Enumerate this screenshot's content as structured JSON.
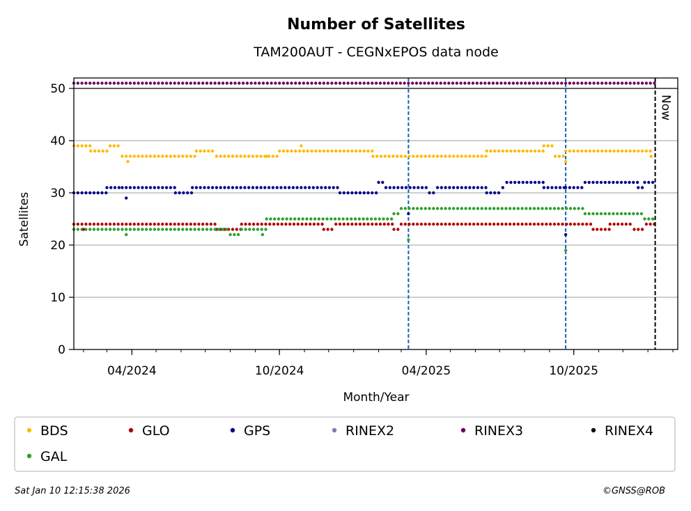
{
  "chart_data": {
    "type": "scatter",
    "title": "Number of Satellites",
    "subtitle": "TAM200AUT - CEGNxEPOS data node",
    "xlabel": "Month/Year",
    "ylabel": "Satellites",
    "x_start": "2024-01-20",
    "x_end": "2026-02-07",
    "ylim": [
      0,
      52
    ],
    "y_ticks": [
      0,
      10,
      20,
      30,
      40,
      50
    ],
    "x_ticks": [
      {
        "label": "04/2024",
        "date": "2024-04-01"
      },
      {
        "label": "10/2024",
        "date": "2024-10-01"
      },
      {
        "label": "04/2025",
        "date": "2025-04-01"
      },
      {
        "label": "10/2025",
        "date": "2025-10-01"
      }
    ],
    "grid": "horizontal",
    "now_line": {
      "date": "2026-01-10",
      "label": "Now"
    },
    "event_lines": [
      "2025-03-10",
      "2025-09-21"
    ],
    "legend_position": "bottom",
    "series": [
      {
        "name": "BDS",
        "color": "#ffb900",
        "segments": [
          {
            "from": "2024-01-20",
            "to": "2024-02-10",
            "value": 39
          },
          {
            "from": "2024-02-10",
            "to": "2024-03-05",
            "value": 38
          },
          {
            "from": "2024-03-05",
            "to": "2024-03-20",
            "value": 39
          },
          {
            "from": "2024-03-20",
            "to": "2024-06-20",
            "value": 37
          },
          {
            "from": "2024-06-20",
            "to": "2024-07-15",
            "value": 38
          },
          {
            "from": "2024-07-15",
            "to": "2024-10-01",
            "value": 37
          },
          {
            "from": "2024-10-01",
            "to": "2025-01-25",
            "value": 38
          },
          {
            "from": "2025-01-25",
            "to": "2025-06-15",
            "value": 37
          },
          {
            "from": "2025-06-15",
            "to": "2025-08-25",
            "value": 38
          },
          {
            "from": "2025-08-25",
            "to": "2025-09-08",
            "value": 39
          },
          {
            "from": "2025-09-08",
            "to": "2025-09-21",
            "value": 37
          },
          {
            "from": "2025-09-21",
            "to": "2026-01-05",
            "value": 38
          },
          {
            "from": "2026-01-05",
            "to": "2026-01-10",
            "value": 37
          }
        ]
      },
      {
        "name": "GLO",
        "color": "#b20000",
        "segments": [
          {
            "from": "2024-01-20",
            "to": "2024-07-15",
            "value": 24
          },
          {
            "from": "2024-07-15",
            "to": "2024-08-15",
            "value": 23
          },
          {
            "from": "2024-08-15",
            "to": "2024-11-25",
            "value": 24
          },
          {
            "from": "2024-11-25",
            "to": "2024-12-10",
            "value": 23
          },
          {
            "from": "2024-12-10",
            "to": "2025-02-20",
            "value": 24
          },
          {
            "from": "2025-02-20",
            "to": "2025-03-01",
            "value": 23
          },
          {
            "from": "2025-03-01",
            "to": "2025-10-25",
            "value": 24
          },
          {
            "from": "2025-10-25",
            "to": "2025-11-15",
            "value": 23
          },
          {
            "from": "2025-11-15",
            "to": "2025-12-15",
            "value": 24
          },
          {
            "from": "2025-12-15",
            "to": "2025-12-30",
            "value": 23
          },
          {
            "from": "2025-12-30",
            "to": "2026-01-10",
            "value": 24
          }
        ]
      },
      {
        "name": "GPS",
        "color": "#00008b",
        "segments": [
          {
            "from": "2024-01-20",
            "to": "2024-03-01",
            "value": 30
          },
          {
            "from": "2024-03-01",
            "to": "2024-03-20",
            "value": 31
          },
          {
            "from": "2024-03-20",
            "to": "2024-05-25",
            "value": 31
          },
          {
            "from": "2024-05-25",
            "to": "2024-06-15",
            "value": 30
          },
          {
            "from": "2024-06-15",
            "to": "2024-12-15",
            "value": 31
          },
          {
            "from": "2024-12-15",
            "to": "2025-02-01",
            "value": 30
          },
          {
            "from": "2025-02-01",
            "to": "2025-02-10",
            "value": 32
          },
          {
            "from": "2025-02-10",
            "to": "2025-04-05",
            "value": 31
          },
          {
            "from": "2025-04-05",
            "to": "2025-04-15",
            "value": 30
          },
          {
            "from": "2025-04-15",
            "to": "2025-06-15",
            "value": 31
          },
          {
            "from": "2025-06-15",
            "to": "2025-07-05",
            "value": 30
          },
          {
            "from": "2025-07-05",
            "to": "2025-07-10",
            "value": 31
          },
          {
            "from": "2025-07-10",
            "to": "2025-08-25",
            "value": 32
          },
          {
            "from": "2025-08-25",
            "to": "2025-09-21",
            "value": 31
          },
          {
            "from": "2025-09-21",
            "to": "2025-10-15",
            "value": 31
          },
          {
            "from": "2025-10-15",
            "to": "2025-12-20",
            "value": 32
          },
          {
            "from": "2025-12-20",
            "to": "2025-12-28",
            "value": 31
          },
          {
            "from": "2025-12-28",
            "to": "2026-01-10",
            "value": 32
          }
        ]
      },
      {
        "name": "RINEX2",
        "color": "#8878b8",
        "segments": []
      },
      {
        "name": "RINEX3",
        "color": "#6a0064",
        "segments": [
          {
            "from": "2024-01-20",
            "to": "2026-01-10",
            "value": 51
          }
        ]
      },
      {
        "name": "RINEX4",
        "color": "#1a0014",
        "segments": []
      },
      {
        "name": "GAL",
        "color": "#2ca02c",
        "segments": [
          {
            "from": "2024-01-20",
            "to": "2024-08-01",
            "value": 23
          },
          {
            "from": "2024-08-01",
            "to": "2024-08-15",
            "value": 22
          },
          {
            "from": "2024-08-15",
            "to": "2024-09-15",
            "value": 23
          },
          {
            "from": "2024-09-15",
            "to": "2025-02-20",
            "value": 25
          },
          {
            "from": "2025-02-20",
            "to": "2025-03-01",
            "value": 26
          },
          {
            "from": "2025-03-01",
            "to": "2025-10-15",
            "value": 27
          },
          {
            "from": "2025-10-15",
            "to": "2025-12-28",
            "value": 26
          },
          {
            "from": "2025-12-28",
            "to": "2026-01-10",
            "value": 25
          }
        ]
      }
    ],
    "outliers": [
      {
        "series": "GAL",
        "date": "2025-03-10",
        "value": 21
      },
      {
        "series": "GAL",
        "date": "2025-09-21",
        "value": 19
      },
      {
        "series": "GPS",
        "date": "2025-09-21",
        "value": 22
      },
      {
        "series": "GPS",
        "date": "2025-03-10",
        "value": 26
      },
      {
        "series": "GPS",
        "date": "2024-03-25",
        "value": 29
      },
      {
        "series": "BDS",
        "date": "2024-03-27",
        "value": 36
      },
      {
        "series": "BDS",
        "date": "2024-09-15",
        "value": 37
      },
      {
        "series": "BDS",
        "date": "2024-10-28",
        "value": 39
      },
      {
        "series": "BDS",
        "date": "2025-09-21",
        "value": 36
      },
      {
        "series": "GLO",
        "date": "2024-02-01",
        "value": 23
      },
      {
        "series": "GAL",
        "date": "2024-03-25",
        "value": 22
      },
      {
        "series": "GAL",
        "date": "2024-09-10",
        "value": 22
      }
    ]
  },
  "footer": {
    "timestamp": "Sat Jan 10 12:15:38 2026",
    "credit": "©GNSS@ROB"
  }
}
